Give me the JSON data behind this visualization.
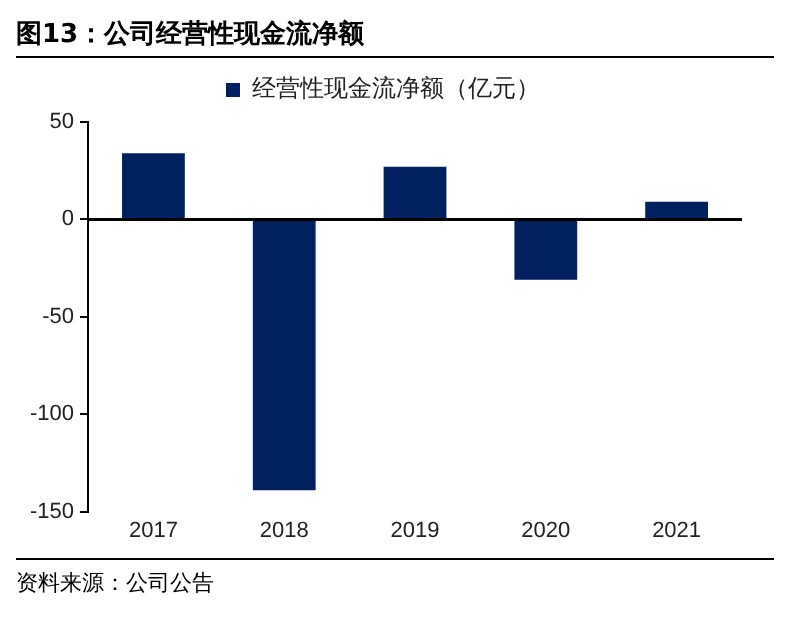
{
  "chart_data": {
    "type": "bar",
    "title": "图13：公司经营性现金流净额",
    "categories": [
      "2017",
      "2018",
      "2019",
      "2020",
      "2021"
    ],
    "series": [
      {
        "name": "经营性现金流净额（亿元）",
        "color": "#002060",
        "values": [
          34,
          -139,
          27,
          -31,
          9
        ]
      }
    ],
    "ref_lines": [
      {
        "axis": "y",
        "value": 0,
        "color": "#000000"
      }
    ],
    "ylim": [
      -150,
      50
    ],
    "yticks": [
      -150,
      -100,
      -50,
      0,
      50
    ],
    "grid": false,
    "legend": "top",
    "annotations": [
      "资料来源：公司公告"
    ]
  }
}
